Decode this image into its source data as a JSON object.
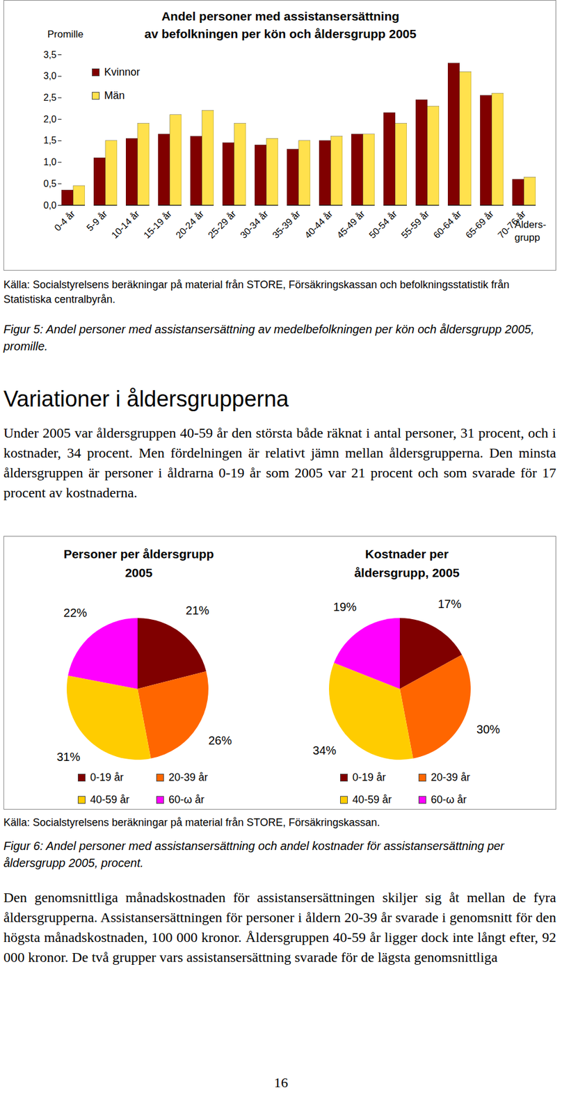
{
  "document": {
    "figure5_source": "Källa: Socialstyrelsens beräkningar på material från STORE, Försäkringskassan och befolkningsstatistik från Statistiska centralbyrån.",
    "figure5_caption": "Figur 5: Andel personer med assistansersättning av medelbefolkningen per kön och åldersgrupp 2005, promille.",
    "heading": "Variationer i åldersgrupperna",
    "paragraph1": "Under 2005 var åldersgruppen 40-59 år den största både räknat i antal personer, 31 procent, och i kostnader, 34 procent. Men fördelningen är relativt jämn mellan åldersgrupperna. Den minsta åldersgruppen är personer i åldrarna 0-19 år som 2005 var 21 procent och som svarade för 17 procent av kostnaderna.",
    "figure6_source": "Källa: Socialstyrelsens beräkningar på material från STORE, Försäkringskassan.",
    "figure6_caption": "Figur 6: Andel personer med assistansersättning och andel kostnader för assistansersättning per åldersgrupp 2005, procent.",
    "paragraph2": "Den genomsnittliga månadskostnaden för assistansersättningen skiljer sig åt mellan de fyra åldersgrupperna. Assistansersättningen för personer i åldern 20-39 år svarade i genomsnitt för den högsta månadskostnaden, 100 000 kronor. Åldersgruppen 40-59 år ligger dock inte långt efter, 92 000 kronor. De två grupper vars assistansersättning svarade för de lägsta genomsnittliga",
    "page_number": "16"
  },
  "chart_data": [
    {
      "type": "bar",
      "title": "Andel personer med assistansersättning\nav befolkningen per kön och åldersgrupp 2005",
      "y_label": "Promille",
      "x_label": "Ålders-\ngrupp",
      "categories": [
        "0-4 år",
        "5-9 år",
        "10-14 år",
        "15-19 år",
        "20-24 år",
        "25-29 år",
        "30-34 år",
        "35-39 år",
        "40-44 år",
        "45-49 år",
        "50-54 år",
        "55-59 år",
        "60-64 år",
        "65-69 år",
        "70-76 år"
      ],
      "series": [
        {
          "name": "Kvinnor",
          "color": "#800000",
          "values": [
            0.35,
            1.1,
            1.55,
            1.65,
            1.6,
            1.45,
            1.4,
            1.3,
            1.5,
            1.65,
            2.15,
            2.45,
            3.3,
            2.55,
            0.6
          ]
        },
        {
          "name": "Män",
          "color": "#ffe14d",
          "values": [
            0.45,
            1.5,
            1.9,
            2.1,
            2.2,
            1.9,
            1.55,
            1.5,
            1.6,
            1.65,
            1.9,
            2.3,
            3.1,
            2.6,
            0.65
          ]
        }
      ],
      "ylim": [
        0,
        3.5
      ],
      "yticks": [
        {
          "value": 0,
          "label": "0,0"
        },
        {
          "value": 0.5,
          "label": "0,5"
        },
        {
          "value": 1,
          "label": "1,0"
        },
        {
          "value": 1.5,
          "label": "1,5"
        },
        {
          "value": 2,
          "label": "2,0"
        },
        {
          "value": 2.5,
          "label": "2,5"
        },
        {
          "value": 3,
          "label": "3,0"
        },
        {
          "value": 3.5,
          "label": "3,5"
        }
      ],
      "grid": false,
      "legend": "top-left"
    },
    {
      "type": "pie",
      "title": "Personer per åldersgrupp\n2005",
      "categories": [
        "0-19 år",
        "20-39 år",
        "40-59 år",
        "60-ω år"
      ],
      "values": [
        21,
        26,
        31,
        22
      ],
      "value_labels": [
        "21%",
        "26%",
        "31%",
        "22%"
      ],
      "colors": [
        "#800000",
        "#ff6600",
        "#ffcc00",
        "#ff00ff"
      ],
      "data_labels": true,
      "legend": "bottom"
    },
    {
      "type": "pie",
      "title": "Kostnader per\nåldersgrupp, 2005",
      "categories": [
        "0-19 år",
        "20-39 år",
        "40-59 år",
        "60-ω år"
      ],
      "values": [
        17,
        30,
        34,
        19
      ],
      "value_labels": [
        "17%",
        "30%",
        "34%",
        "19%"
      ],
      "colors": [
        "#800000",
        "#ff6600",
        "#ffcc00",
        "#ff00ff"
      ],
      "data_labels": true,
      "legend": "bottom"
    }
  ]
}
